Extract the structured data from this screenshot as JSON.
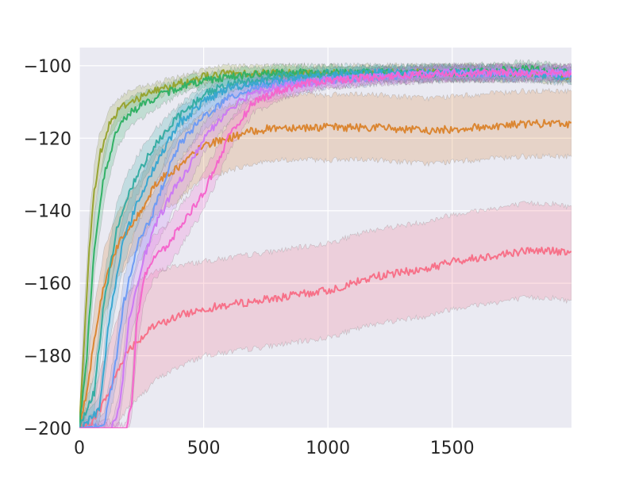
{
  "chart_data": {
    "type": "line",
    "title": "",
    "xlabel": "",
    "ylabel": "",
    "xlim": [
      0,
      1980
    ],
    "ylim": [
      -200,
      -95
    ],
    "x_ticks": [
      0,
      500,
      1000,
      1500
    ],
    "y_ticks": [
      -200,
      -180,
      -160,
      -140,
      -120,
      -100
    ],
    "x_tick_labels": [
      "0",
      "500",
      "1000",
      "1500"
    ],
    "y_tick_labels": [
      "−200",
      "−180",
      "−160",
      "−140",
      "−120",
      "−100"
    ],
    "grid": true,
    "legend": "none",
    "style": {
      "background": "#EAEAF2",
      "grid_color": "#FFFFFF",
      "band_opacity": 0.22
    },
    "series": [
      {
        "color": "#F77189",
        "x": [
          0,
          40,
          80,
          120,
          160,
          200,
          250,
          300,
          400,
          500,
          600,
          700,
          800,
          900,
          1000,
          1100,
          1200,
          1300,
          1400,
          1500,
          1600,
          1700,
          1800,
          1900,
          1980
        ],
        "mean": [
          -200,
          -199,
          -195,
          -190,
          -183,
          -178,
          -175,
          -172,
          -169,
          -167,
          -166,
          -165,
          -164,
          -163,
          -162,
          -160,
          -158,
          -157,
          -156,
          -154,
          -153,
          -152,
          -151,
          -151,
          -152
        ],
        "band": [
          2,
          6,
          10,
          13,
          15,
          16,
          16,
          15,
          14,
          13,
          13,
          13,
          13,
          13,
          13,
          13,
          13,
          13,
          13,
          13,
          13,
          13,
          13,
          13,
          13
        ]
      },
      {
        "color": "#DB8632",
        "x": [
          0,
          30,
          60,
          100,
          150,
          200,
          250,
          300,
          350,
          400,
          450,
          500,
          550,
          600,
          700,
          800,
          900,
          1000,
          1200,
          1400,
          1600,
          1800,
          1980
        ],
        "mean": [
          -200,
          -190,
          -175,
          -160,
          -150,
          -145,
          -140,
          -133,
          -130,
          -128,
          -125,
          -122,
          -121,
          -120,
          -118,
          -117,
          -117,
          -117,
          -117,
          -118,
          -117,
          -116,
          -116
        ],
        "band": [
          2,
          6,
          8,
          9,
          9,
          9,
          9,
          9,
          9,
          9,
          9,
          9,
          9,
          9,
          9,
          9,
          9,
          9,
          9,
          9,
          9,
          9,
          9
        ]
      },
      {
        "color": "#97A431",
        "x": [
          0,
          20,
          40,
          60,
          80,
          120,
          160,
          200,
          300,
          400,
          500,
          600,
          800,
          1000,
          1200,
          1500,
          1800,
          1980
        ],
        "mean": [
          -200,
          -175,
          -150,
          -135,
          -125,
          -116,
          -112,
          -110,
          -107,
          -105,
          -103,
          -102,
          -102,
          -102,
          -102,
          -102,
          -102,
          -103
        ],
        "band": [
          2,
          8,
          8,
          7,
          6,
          4,
          3,
          3,
          2,
          2,
          2,
          2,
          2,
          2,
          2,
          2,
          2,
          2
        ]
      },
      {
        "color": "#32B166",
        "x": [
          0,
          30,
          60,
          100,
          150,
          200,
          300,
          400,
          500,
          600,
          800,
          1000,
          1200,
          1500,
          1800,
          1980
        ],
        "mean": [
          -200,
          -180,
          -150,
          -130,
          -118,
          -113,
          -109,
          -106,
          -104,
          -103,
          -102,
          -102,
          -102,
          -102,
          -101,
          -102
        ],
        "band": [
          2,
          8,
          8,
          7,
          5,
          4,
          3,
          2,
          2,
          2,
          2,
          2,
          2,
          2,
          2,
          2
        ]
      },
      {
        "color": "#36ADA4",
        "x": [
          0,
          60,
          100,
          150,
          200,
          250,
          300,
          400,
          500,
          600,
          800,
          1000,
          1200,
          1500,
          1800,
          1980
        ],
        "mean": [
          -200,
          -190,
          -165,
          -145,
          -135,
          -128,
          -122,
          -114,
          -108,
          -105,
          -103,
          -102,
          -102,
          -102,
          -102,
          -102
        ],
        "band": [
          2,
          5,
          7,
          7,
          6,
          5,
          4,
          3,
          3,
          2,
          2,
          2,
          2,
          2,
          2,
          2
        ]
      },
      {
        "color": "#39A7D0",
        "x": [
          0,
          80,
          120,
          170,
          220,
          300,
          400,
          500,
          600,
          800,
          1000,
          1200,
          1500,
          1800,
          1980
        ],
        "mean": [
          -200,
          -195,
          -170,
          -150,
          -140,
          -128,
          -116,
          -110,
          -106,
          -104,
          -103,
          -102,
          -102,
          -102,
          -103
        ],
        "band": [
          2,
          4,
          7,
          7,
          6,
          5,
          4,
          3,
          3,
          2,
          2,
          2,
          2,
          2,
          2
        ]
      },
      {
        "color": "#6E9BF4",
        "x": [
          0,
          100,
          140,
          180,
          230,
          300,
          350,
          400,
          500,
          600,
          700,
          800,
          1000,
          1200,
          1500,
          1800,
          1980
        ],
        "mean": [
          -200,
          -199,
          -185,
          -165,
          -150,
          -140,
          -130,
          -122,
          -114,
          -109,
          -106,
          -105,
          -104,
          -103,
          -102,
          -102,
          -102
        ],
        "band": [
          2,
          3,
          6,
          7,
          6,
          5,
          5,
          4,
          4,
          3,
          3,
          3,
          2,
          2,
          2,
          2,
          2
        ]
      },
      {
        "color": "#CC7AF4",
        "x": [
          0,
          130,
          160,
          200,
          250,
          300,
          350,
          400,
          450,
          500,
          600,
          700,
          800,
          1000,
          1200,
          1500,
          1800,
          1980
        ],
        "mean": [
          -200,
          -200,
          -195,
          -170,
          -155,
          -145,
          -138,
          -132,
          -127,
          -120,
          -112,
          -107,
          -106,
          -104,
          -103,
          -102,
          -102,
          -102
        ],
        "band": [
          1,
          2,
          4,
          7,
          7,
          6,
          6,
          5,
          5,
          4,
          4,
          3,
          3,
          2,
          2,
          2,
          2,
          2
        ]
      },
      {
        "color": "#F565CC",
        "x": [
          0,
          190,
          210,
          230,
          260,
          300,
          350,
          400,
          450,
          500,
          600,
          700,
          800,
          900,
          1000,
          1200,
          1500,
          1800,
          1980
        ],
        "mean": [
          -200,
          -200,
          -193,
          -172,
          -158,
          -153,
          -150,
          -145,
          -140,
          -135,
          -120,
          -110,
          -107,
          -105,
          -104,
          -103,
          -102,
          -102,
          -102
        ],
        "band": [
          1,
          1,
          4,
          7,
          7,
          6,
          6,
          6,
          5,
          5,
          4,
          3,
          3,
          2,
          2,
          2,
          2,
          2,
          2
        ]
      }
    ]
  }
}
